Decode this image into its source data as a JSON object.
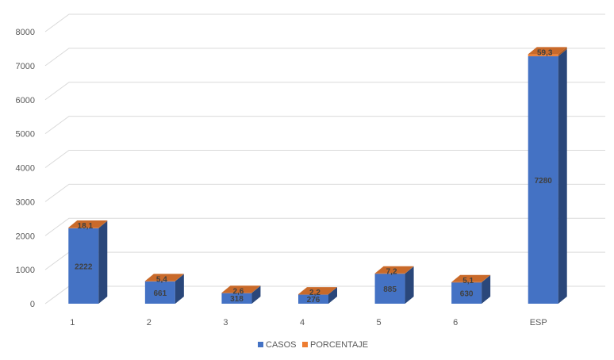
{
  "chart_data": {
    "type": "bar",
    "title": "",
    "xlabel": "",
    "ylabel": "",
    "categories": [
      "1",
      "2",
      "3",
      "4",
      "5",
      "6",
      "ESP"
    ],
    "series": [
      {
        "name": "CASOS",
        "values": [
          2222,
          661,
          318,
          276,
          885,
          630,
          7280
        ],
        "color": "#4472C4"
      },
      {
        "name": "PORCENTAJE",
        "values": [
          18.1,
          5.4,
          2.6,
          2.2,
          7.2,
          5.1,
          59.3
        ],
        "value_labels": [
          "18,1",
          "5,4",
          "2,6",
          "2,2",
          "7,2",
          "5,1",
          "59,3"
        ],
        "color": "#ED7D31"
      }
    ],
    "yticks": [
      0,
      1000,
      2000,
      3000,
      4000,
      5000,
      6000,
      7000,
      8000
    ],
    "ylim": [
      0,
      8000
    ],
    "stacked": true,
    "three_d": true,
    "grid": true,
    "legend_position": "bottom"
  }
}
